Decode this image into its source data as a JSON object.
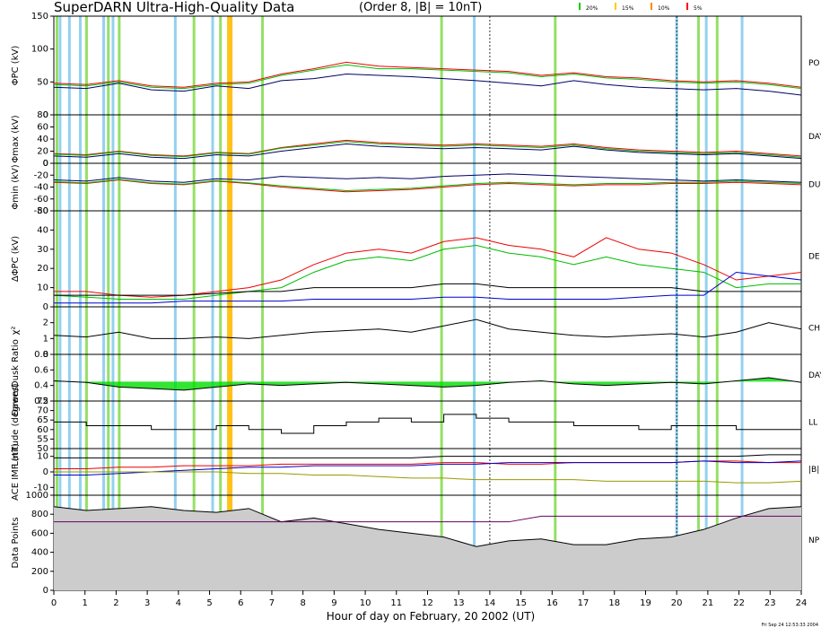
{
  "header": {
    "title": "SuperDARN Ultra-High-Quality Data",
    "subtitle": "(Order 8, |B| = 10nT)",
    "legend": [
      {
        "label": "20%",
        "color": "#00cc00"
      },
      {
        "label": "15%",
        "color": "#ffcc00"
      },
      {
        "label": "10%",
        "color": "#ff8800"
      },
      {
        "label": "5%",
        "color": "#ff0000"
      }
    ]
  },
  "footer": {
    "xlabel": "Hour of day on February, 20 2002 (UT)",
    "timestamp": "Fri Sep 24 12:53:33 2004"
  },
  "colors": {
    "cyan_band": "#88ccee",
    "green_band": "#88dd55",
    "orange_band": "#ffbb00",
    "dark_blue": "#000066",
    "red": "#ee0000",
    "green": "#00bb00",
    "blue": "#0000cc"
  },
  "chart_data": {
    "type": "line",
    "x_range": [
      0,
      24
    ],
    "x_ticks": [
      "0",
      "1",
      "2",
      "3",
      "4",
      "5",
      "6",
      "7",
      "8",
      "9",
      "10",
      "11",
      "12",
      "13",
      "14",
      "15",
      "16",
      "17",
      "18",
      "19",
      "20",
      "21",
      "22",
      "23",
      "24"
    ],
    "bands": [
      {
        "x": 0.1,
        "color": "green"
      },
      {
        "x": 0.2,
        "color": "cyan"
      },
      {
        "x": 0.5,
        "color": "cyan"
      },
      {
        "x": 0.85,
        "color": "cyan"
      },
      {
        "x": 1.05,
        "color": "green"
      },
      {
        "x": 1.6,
        "color": "cyan"
      },
      {
        "x": 1.75,
        "color": "green"
      },
      {
        "x": 1.9,
        "color": "cyan"
      },
      {
        "x": 2.1,
        "color": "green"
      },
      {
        "x": 3.9,
        "color": "cyan"
      },
      {
        "x": 4.5,
        "color": "green"
      },
      {
        "x": 5.1,
        "color": "cyan"
      },
      {
        "x": 5.35,
        "color": "green"
      },
      {
        "x": 5.65,
        "color": "orange"
      },
      {
        "x": 6.7,
        "color": "green"
      },
      {
        "x": 12.45,
        "color": "green"
      },
      {
        "x": 13.5,
        "color": "cyan"
      },
      {
        "x": 16.1,
        "color": "green"
      },
      {
        "x": 20.0,
        "color": "cyan"
      },
      {
        "x": 20.7,
        "color": "green"
      },
      {
        "x": 20.95,
        "color": "cyan"
      },
      {
        "x": 21.3,
        "color": "green"
      },
      {
        "x": 22.1,
        "color": "cyan"
      }
    ],
    "dotted_lines": [
      14.0,
      20.0
    ],
    "panels": [
      {
        "id": "phi_pc",
        "ylabel": "ΦPC (kV)",
        "ylim": [
          0,
          150
        ],
        "yticks": [
          "150",
          "100",
          "50",
          "0"
        ],
        "right_label": "PO\nPO",
        "series": [
          {
            "color": "dark_blue",
            "values": [
              42,
              40,
              48,
              38,
              36,
              44,
              40,
              52,
              55,
              62,
              60,
              58,
              55,
              52,
              48,
              44,
              52,
              46,
              42,
              40,
              38,
              40,
              36,
              30
            ]
          },
          {
            "color": "red",
            "values": [
              48,
              46,
              52,
              44,
              42,
              48,
              50,
              62,
              70,
              80,
              74,
              72,
              70,
              68,
              66,
              60,
              64,
              58,
              56,
              52,
              50,
              52,
              48,
              42
            ]
          },
          {
            "color": "green",
            "values": [
              46,
              44,
              50,
              42,
              40,
              46,
              48,
              60,
              68,
              76,
              70,
              70,
              68,
              66,
              64,
              58,
              62,
              56,
              54,
              50,
              48,
              50,
              46,
              40
            ]
          }
        ]
      },
      {
        "id": "phi_max",
        "ylabel": "Φmax (kV)",
        "ylim": [
          0,
          80
        ],
        "yticks": [
          "80",
          "60",
          "40",
          "20",
          "0"
        ],
        "right_label": "DAY",
        "series": [
          {
            "color": "dark_blue",
            "values": [
              12,
              10,
              16,
              10,
              8,
              14,
              12,
              20,
              26,
              32,
              28,
              26,
              24,
              26,
              24,
              22,
              28,
              22,
              18,
              16,
              14,
              16,
              12,
              8
            ]
          },
          {
            "color": "red",
            "values": [
              16,
              14,
              20,
              14,
              12,
              18,
              16,
              26,
              32,
              38,
              34,
              32,
              30,
              32,
              30,
              28,
              32,
              26,
              22,
              20,
              18,
              20,
              16,
              12
            ]
          },
          {
            "color": "green",
            "values": [
              15,
              13,
              19,
              13,
              11,
              17,
              15,
              25,
              30,
              36,
              32,
              30,
              28,
              30,
              28,
              26,
              30,
              24,
              20,
              18,
              16,
              18,
              14,
              10
            ]
          }
        ]
      },
      {
        "id": "phi_min",
        "ylabel": "Φmin (kV)",
        "ylim": [
          -80,
          0
        ],
        "yticks": [
          "0",
          "-20",
          "-40",
          "-60",
          "-80"
        ],
        "right_label": "DU",
        "series": [
          {
            "color": "dark_blue",
            "values": [
              -28,
              -30,
              -24,
              -30,
              -32,
              -26,
              -28,
              -22,
              -24,
              -26,
              -24,
              -26,
              -22,
              -20,
              -18,
              -20,
              -22,
              -24,
              -26,
              -28,
              -30,
              -28,
              -30,
              -32
            ]
          },
          {
            "color": "red",
            "values": [
              -32,
              -34,
              -28,
              -34,
              -36,
              -30,
              -34,
              -40,
              -44,
              -48,
              -46,
              -44,
              -40,
              -36,
              -34,
              -36,
              -38,
              -36,
              -36,
              -34,
              -34,
              -32,
              -34,
              -36
            ]
          },
          {
            "color": "green",
            "values": [
              -31,
              -33,
              -27,
              -33,
              -35,
              -29,
              -33,
              -38,
              -42,
              -46,
              -44,
              -42,
              -38,
              -34,
              -32,
              -34,
              -36,
              -34,
              -34,
              -32,
              -32,
              -30,
              -32,
              -34
            ]
          }
        ]
      },
      {
        "id": "dphi_pc",
        "ylabel": "ΔΦPC (kV)",
        "ylim": [
          0,
          50
        ],
        "yticks": [
          "50",
          "40",
          "30",
          "20",
          "10",
          "0"
        ],
        "right_label": "DE",
        "series": [
          {
            "color": "red",
            "values": [
              8,
              8,
              6,
              5,
              6,
              8,
              10,
              14,
              22,
              28,
              30,
              28,
              34,
              36,
              32,
              30,
              26,
              36,
              30,
              28,
              22,
              14,
              16,
              18
            ]
          },
          {
            "color": "green",
            "values": [
              6,
              5,
              4,
              4,
              4,
              6,
              8,
              10,
              18,
              24,
              26,
              24,
              30,
              32,
              28,
              26,
              22,
              26,
              22,
              20,
              18,
              10,
              12,
              12
            ]
          },
          {
            "color": "black",
            "values": [
              6,
              6,
              6,
              6,
              6,
              7,
              8,
              8,
              10,
              10,
              10,
              10,
              12,
              12,
              10,
              10,
              10,
              10,
              10,
              10,
              8,
              8,
              8,
              8
            ]
          },
          {
            "color": "blue",
            "values": [
              2,
              2,
              2,
              2,
              3,
              3,
              3,
              3,
              4,
              4,
              4,
              4,
              5,
              5,
              4,
              4,
              4,
              4,
              5,
              6,
              6,
              18,
              16,
              14
            ]
          }
        ]
      },
      {
        "id": "chi2",
        "ylabel": "χ²",
        "ylim": [
          0,
          3
        ],
        "yticks": [
          "2",
          "1",
          "0"
        ],
        "right_label": "CH",
        "series": [
          {
            "color": "black",
            "values": [
              1.2,
              1.1,
              1.4,
              1.0,
              1.0,
              1.1,
              1.0,
              1.2,
              1.4,
              1.5,
              1.6,
              1.4,
              1.8,
              2.2,
              1.6,
              1.4,
              1.2,
              1.1,
              1.2,
              1.3,
              1.1,
              1.4,
              2.0,
              1.6
            ]
          }
        ]
      },
      {
        "id": "dawn_dusk",
        "ylabel": "Dawn/Dusk Ratio",
        "ylim": [
          0.2,
          0.8
        ],
        "yticks": [
          "0.8",
          "0.6",
          "0.4",
          "0.2"
        ],
        "right_label": "DAY",
        "series": [
          {
            "color": "black",
            "values": [
              0.46,
              0.44,
              0.38,
              0.36,
              0.34,
              0.38,
              0.42,
              0.4,
              0.42,
              0.44,
              0.42,
              0.4,
              0.38,
              0.4,
              0.44,
              0.46,
              0.42,
              0.4,
              0.42,
              0.44,
              0.42,
              0.46,
              0.5,
              0.44
            ]
          }
        ]
      },
      {
        "id": "latitude",
        "ylabel": "Latitude (degrees)",
        "ylim": [
          50,
          75
        ],
        "yticks": [
          "75",
          "70",
          "65",
          "60",
          "55",
          "50"
        ],
        "right_label": "LL",
        "series": [
          {
            "color": "black",
            "values": [
              64,
              62,
              62,
              60,
              60,
              62,
              60,
              58,
              62,
              64,
              66,
              64,
              68,
              66,
              64,
              64,
              62,
              62,
              60,
              62,
              62,
              60,
              60,
              62
            ]
          }
        ]
      },
      {
        "id": "imf",
        "ylabel": "ACE IMF (nT)",
        "ylim": [
          -15,
          15
        ],
        "yticks": [
          "10",
          "0",
          "-10"
        ],
        "right_label": "|B|",
        "series": [
          {
            "color": "red",
            "values": [
              2,
              2,
              3,
              3,
              4,
              4,
              4,
              5,
              5,
              5,
              5,
              5,
              6,
              6,
              5,
              5,
              6,
              6,
              6,
              6,
              7,
              7,
              6,
              6
            ]
          },
          {
            "color": "blue",
            "values": [
              -2,
              -2,
              -1,
              0,
              1,
              2,
              3,
              3,
              4,
              4,
              4,
              4,
              5,
              5,
              6,
              6,
              6,
              6,
              6,
              6,
              7,
              6,
              6,
              7
            ]
          },
          {
            "color": "olive",
            "values": [
              0,
              0,
              0,
              0,
              0,
              0,
              -1,
              -1,
              -2,
              -2,
              -3,
              -4,
              -4,
              -5,
              -5,
              -5,
              -5,
              -6,
              -6,
              -6,
              -6,
              -7,
              -7,
              -6
            ]
          },
          {
            "color": "black",
            "values": [
              9,
              9,
              9,
              9,
              9,
              9,
              9,
              9,
              9,
              9,
              9,
              9,
              10,
              10,
              10,
              10,
              10,
              10,
              10,
              10,
              10,
              10,
              11,
              11
            ]
          }
        ]
      },
      {
        "id": "data_points",
        "ylabel": "Data Points",
        "ylim": [
          0,
          1000
        ],
        "yticks": [
          "1000",
          "800",
          "600",
          "400",
          "200",
          "0"
        ],
        "right_label": "NP",
        "series": [
          {
            "color": "black",
            "values": [
              880,
              840,
              860,
              880,
              840,
              820,
              860,
              720,
              760,
              700,
              640,
              600,
              560,
              460,
              520,
              540,
              480,
              480,
              540,
              560,
              640,
              760,
              860,
              880
            ]
          },
          {
            "color": "purple",
            "values": [
              720,
              720,
              720,
              720,
              720,
              720,
              720,
              720,
              720,
              720,
              720,
              720,
              720,
              720,
              720,
              780,
              780,
              780,
              780,
              780,
              780,
              780,
              780,
              780
            ]
          }
        ]
      }
    ]
  }
}
